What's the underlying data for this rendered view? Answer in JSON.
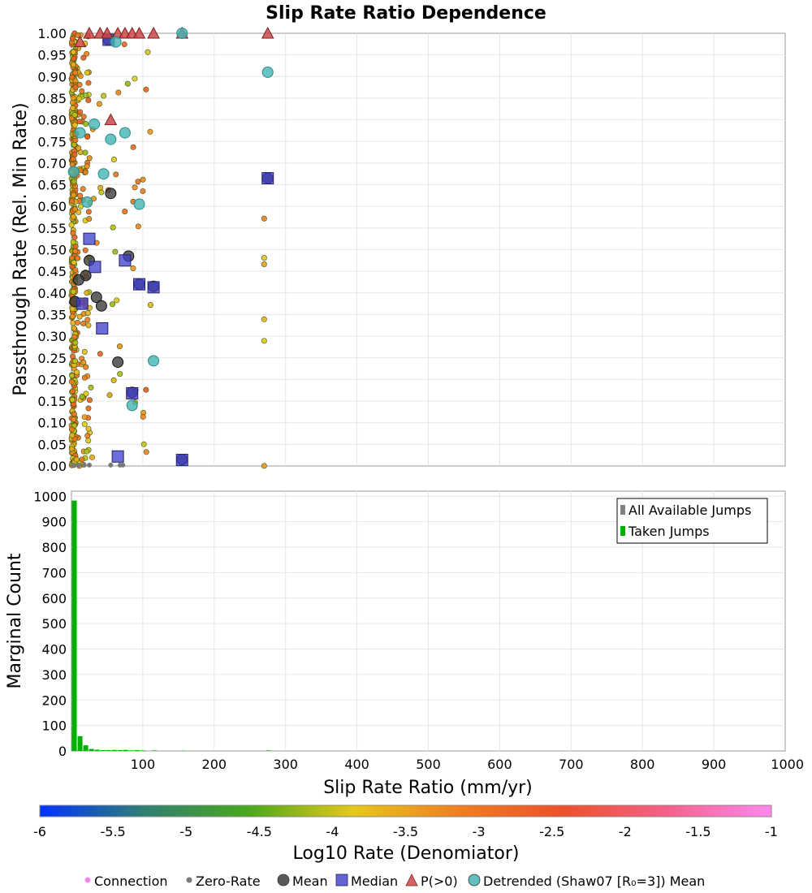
{
  "chart_data": [
    {
      "type": "scatter",
      "title": "Slip Rate Ratio Dependence",
      "ylabel": "Passthrough Rate (Rel. Min Rate)",
      "xlim": [
        0,
        1000
      ],
      "ylim": [
        0,
        1
      ],
      "yticks": [
        "0.00",
        "0.05",
        "0.10",
        "0.15",
        "0.20",
        "0.25",
        "0.30",
        "0.35",
        "0.40",
        "0.45",
        "0.50",
        "0.55",
        "0.60",
        "0.65",
        "0.70",
        "0.75",
        "0.80",
        "0.85",
        "0.90",
        "0.95",
        "1.00"
      ],
      "grid": true,
      "colors": {
        "mean": "#3c3c3c",
        "median": "#3c3ccc",
        "p_gt_0": "#cc4848",
        "detrended": "#44b4b4",
        "zero_rate": "#7a7a7a"
      },
      "series": [
        {
          "name": "Mean",
          "marker": "circle",
          "points": [
            {
              "x": 55,
              "y": 0.63
            },
            {
              "x": 20,
              "y": 0.44
            },
            {
              "x": 10,
              "y": 0.43
            },
            {
              "x": 25,
              "y": 0.475
            },
            {
              "x": 80,
              "y": 0.485
            },
            {
              "x": 35,
              "y": 0.39
            },
            {
              "x": 42,
              "y": 0.37
            },
            {
              "x": 65,
              "y": 0.24
            },
            {
              "x": 95,
              "y": 0.42
            },
            {
              "x": 115,
              "y": 0.415
            },
            {
              "x": 85,
              "y": 0.17
            },
            {
              "x": 155,
              "y": 0.015
            },
            {
              "x": 275,
              "y": 0.665
            },
            {
              "x": 5,
              "y": 0.38
            },
            {
              "x": 52,
              "y": 0.985
            }
          ]
        },
        {
          "name": "Median",
          "marker": "square",
          "points": [
            {
              "x": 25,
              "y": 0.525
            },
            {
              "x": 33,
              "y": 0.46
            },
            {
              "x": 75,
              "y": 0.475
            },
            {
              "x": 95,
              "y": 0.42
            },
            {
              "x": 115,
              "y": 0.413
            },
            {
              "x": 15,
              "y": 0.375
            },
            {
              "x": 43,
              "y": 0.318
            },
            {
              "x": 85,
              "y": 0.168
            },
            {
              "x": 65,
              "y": 0.022
            },
            {
              "x": 155,
              "y": 0.014
            },
            {
              "x": 275,
              "y": 0.665
            },
            {
              "x": 52,
              "y": 0.985
            }
          ]
        },
        {
          "name": "P(>0)",
          "marker": "triangle",
          "points": [
            {
              "x": 12,
              "y": 0.98
            },
            {
              "x": 25,
              "y": 1.0
            },
            {
              "x": 40,
              "y": 1.0
            },
            {
              "x": 50,
              "y": 1.0
            },
            {
              "x": 65,
              "y": 1.0
            },
            {
              "x": 75,
              "y": 1.0
            },
            {
              "x": 85,
              "y": 1.0
            },
            {
              "x": 95,
              "y": 1.0
            },
            {
              "x": 115,
              "y": 1.0
            },
            {
              "x": 155,
              "y": 1.0
            },
            {
              "x": 275,
              "y": 1.0
            },
            {
              "x": 55,
              "y": 0.8
            }
          ]
        },
        {
          "name": "Detrended (Shaw07 [R₀=3]) Mean",
          "marker": "circle",
          "points": [
            {
              "x": 62,
              "y": 0.98
            },
            {
              "x": 155,
              "y": 1.0
            },
            {
              "x": 275,
              "y": 0.91
            },
            {
              "x": 12,
              "y": 0.77
            },
            {
              "x": 32,
              "y": 0.79
            },
            {
              "x": 75,
              "y": 0.77
            },
            {
              "x": 55,
              "y": 0.755
            },
            {
              "x": 45,
              "y": 0.675
            },
            {
              "x": 22,
              "y": 0.61
            },
            {
              "x": 95,
              "y": 0.605
            },
            {
              "x": 115,
              "y": 0.243
            },
            {
              "x": 85,
              "y": 0.14
            },
            {
              "x": 3,
              "y": 0.68
            }
          ]
        }
      ],
      "colorbar": {
        "label": "Log10 Rate (Denomiator)",
        "ticks": [
          "-6",
          "-5.5",
          "-5",
          "-4.5",
          "-4",
          "-3.5",
          "-3",
          "-2.5",
          "-2",
          "-1.5",
          "-1"
        ],
        "range": [
          -6,
          -1
        ],
        "stops": [
          "#0033ff",
          "#2f7f73",
          "#4aa81a",
          "#e6c81a",
          "#f07f20",
          "#ee5028",
          "#f5608a",
          "#ff88ee"
        ]
      }
    },
    {
      "type": "bar",
      "ylabel": "Marginal Count",
      "xlabel": "Slip Rate Ratio (mm/yr)",
      "xlim": [
        0,
        1000
      ],
      "ylim": [
        0,
        1020
      ],
      "xticks": [
        "100",
        "200",
        "300",
        "400",
        "500",
        "600",
        "700",
        "800",
        "900",
        "1000"
      ],
      "yticks": [
        "0",
        "100",
        "200",
        "300",
        "400",
        "500",
        "600",
        "700",
        "800",
        "900",
        "1000"
      ],
      "grid": true,
      "legend": {
        "placement": "top-right"
      },
      "bin_width": 8,
      "series": [
        {
          "name": "All Available Jumps",
          "color": "#808080",
          "bins": []
        },
        {
          "name": "Taken Jumps",
          "color": "#00b000",
          "bins": [
            {
              "x": 0,
              "count": 983
            },
            {
              "x": 8,
              "count": 58
            },
            {
              "x": 16,
              "count": 22
            },
            {
              "x": 24,
              "count": 8
            },
            {
              "x": 32,
              "count": 5
            },
            {
              "x": 40,
              "count": 3
            },
            {
              "x": 48,
              "count": 3
            },
            {
              "x": 56,
              "count": 4
            },
            {
              "x": 64,
              "count": 3
            },
            {
              "x": 72,
              "count": 4
            },
            {
              "x": 80,
              "count": 2
            },
            {
              "x": 88,
              "count": 3
            },
            {
              "x": 96,
              "count": 2
            },
            {
              "x": 112,
              "count": 2
            },
            {
              "x": 152,
              "count": 1
            },
            {
              "x": 272,
              "count": 2
            }
          ]
        }
      ]
    }
  ],
  "legend_bottom": [
    {
      "label": "Connection",
      "marker": "dot",
      "color": "#ee88ee"
    },
    {
      "label": "Zero-Rate",
      "marker": "dot",
      "color": "#7a7a7a"
    },
    {
      "label": "Mean",
      "marker": "circle",
      "color": "#3c3c3c"
    },
    {
      "label": "Median",
      "marker": "square",
      "color": "#3c3ccc"
    },
    {
      "label": "P(>0)",
      "marker": "triangle",
      "color": "#cc4848"
    },
    {
      "label": "Detrended (Shaw07 [R₀=3]) Mean",
      "marker": "circle",
      "color": "#44b4b4"
    }
  ]
}
